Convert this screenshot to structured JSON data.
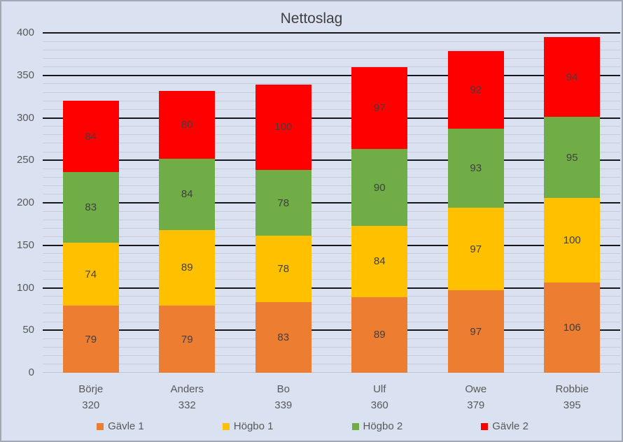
{
  "chart_data": {
    "type": "bar",
    "stacked": true,
    "title": "Nettoslag",
    "categories": [
      "Börje",
      "Anders",
      "Bo",
      "Ulf",
      "Owe",
      "Robbie"
    ],
    "category_totals": [
      320,
      332,
      339,
      360,
      379,
      395
    ],
    "series": [
      {
        "name": "Gävle 1",
        "color": "#ED7D31",
        "values": [
          79,
          79,
          83,
          89,
          97,
          106
        ]
      },
      {
        "name": "Högbo 1",
        "color": "#FFC000",
        "values": [
          74,
          89,
          78,
          84,
          97,
          100
        ]
      },
      {
        "name": "Högbo 2",
        "color": "#70AD47",
        "values": [
          83,
          84,
          78,
          90,
          93,
          95
        ]
      },
      {
        "name": "Gävle 2",
        "color": "#FF0000",
        "values": [
          84,
          80,
          100,
          97,
          92,
          94
        ]
      }
    ],
    "y_axis": {
      "min": 0,
      "max": 400,
      "major_step": 50,
      "minor_step": 10,
      "tick_labels": [
        "0",
        "50",
        "100",
        "150",
        "200",
        "250",
        "300",
        "350",
        "400"
      ]
    },
    "x_axis": {
      "label_lines": "category name over total"
    },
    "legend": {
      "position": "bottom",
      "entries": [
        "Gävle 1",
        "Högbo 1",
        "Högbo 2",
        "Gävle 2"
      ]
    },
    "grid": {
      "major_color": "#16181d",
      "minor_color": "#c6cbd6",
      "gridlines_behind_bars": true
    }
  },
  "colors": {
    "background": "#dae1f0",
    "border": "#a3a9b3",
    "title_text": "#404040",
    "axis_text": "#595959",
    "data_label_text": "#404040"
  }
}
